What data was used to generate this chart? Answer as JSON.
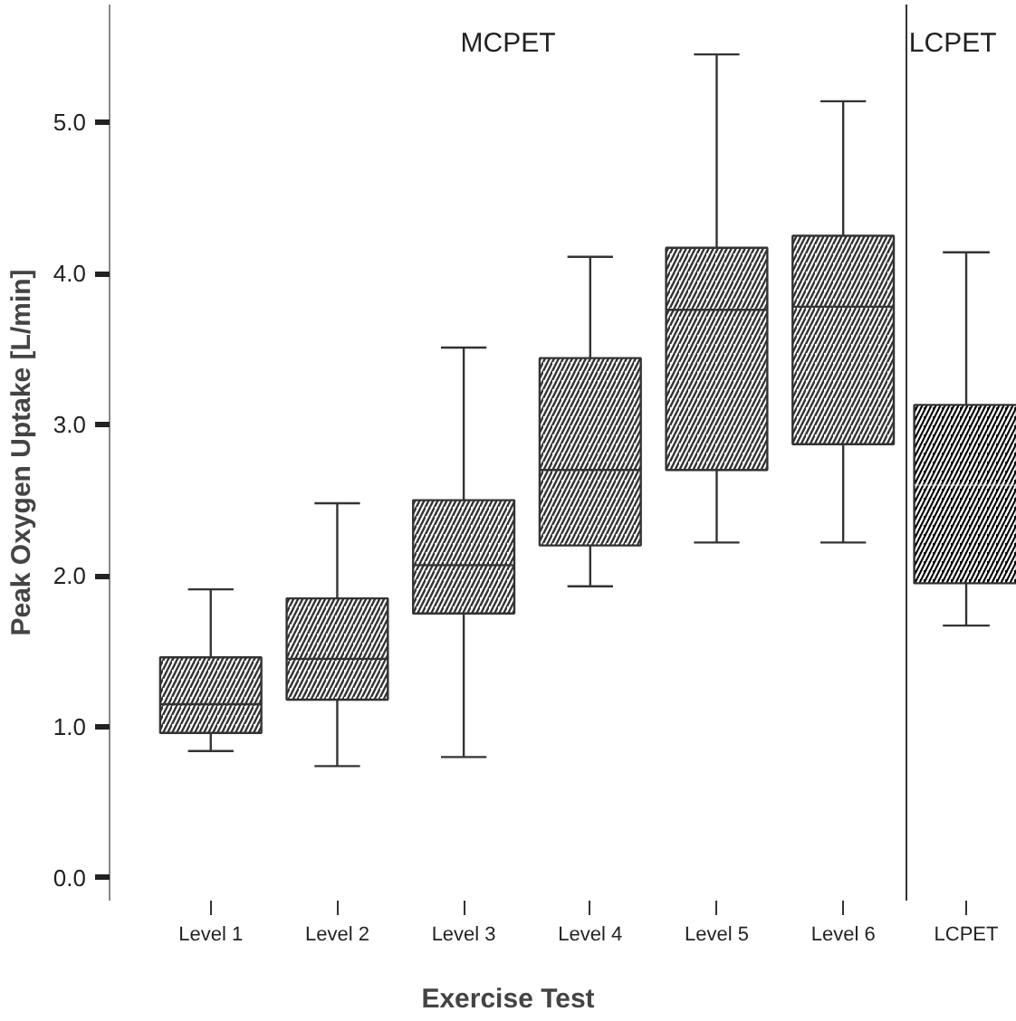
{
  "chart_data": [
    {
      "type": "box",
      "title": "MCPET",
      "xlabel": "Exercise Test",
      "ylabel": "Peak Oxygen Uptake [L/min]",
      "categories": [
        "Level 1",
        "Level 2",
        "Level 3",
        "Level 4",
        "Level 5",
        "Level 6"
      ],
      "ylim": [
        -0.15,
        5.78
      ],
      "yticks": [
        {
          "value": 0,
          "label": "0.0"
        },
        {
          "value": 1,
          "label": "1.0"
        },
        {
          "value": 2,
          "label": "2.0"
        },
        {
          "value": 3,
          "label": "3.0"
        },
        {
          "value": 4,
          "label": "4.0"
        },
        {
          "value": 5,
          "label": "5.0"
        }
      ],
      "grid": false,
      "series": [
        {
          "color": "#ffffff",
          "boxes": [
            {
              "low": 0.84,
              "q1": 0.96,
              "median": 1.15,
              "q3": 1.46,
              "high": 1.91
            },
            {
              "low": 0.74,
              "q1": 1.18,
              "median": 1.45,
              "q3": 1.85,
              "high": 2.48
            },
            {
              "low": 0.8,
              "q1": 1.75,
              "median": 2.07,
              "q3": 2.5,
              "high": 3.51
            },
            {
              "low": 1.93,
              "q1": 2.2,
              "median": 2.7,
              "q3": 3.44,
              "high": 4.11
            },
            {
              "low": 2.22,
              "q1": 2.7,
              "median": 3.76,
              "q3": 4.17,
              "high": 5.45
            },
            {
              "low": 2.22,
              "q1": 2.87,
              "median": 3.78,
              "q3": 4.25,
              "high": 5.14
            }
          ]
        }
      ]
    },
    {
      "type": "box",
      "title": "LCPET",
      "categories": [
        "LCPET"
      ],
      "ylim": [
        -0.15,
        5.78
      ],
      "tick_labels": "x",
      "grid": false,
      "series": [
        {
          "color": "#000000",
          "boxes": [
            {
              "low": 1.67,
              "q1": 1.95,
              "median": 2.6,
              "q3": 3.13,
              "high": 4.14
            }
          ]
        }
      ]
    }
  ]
}
